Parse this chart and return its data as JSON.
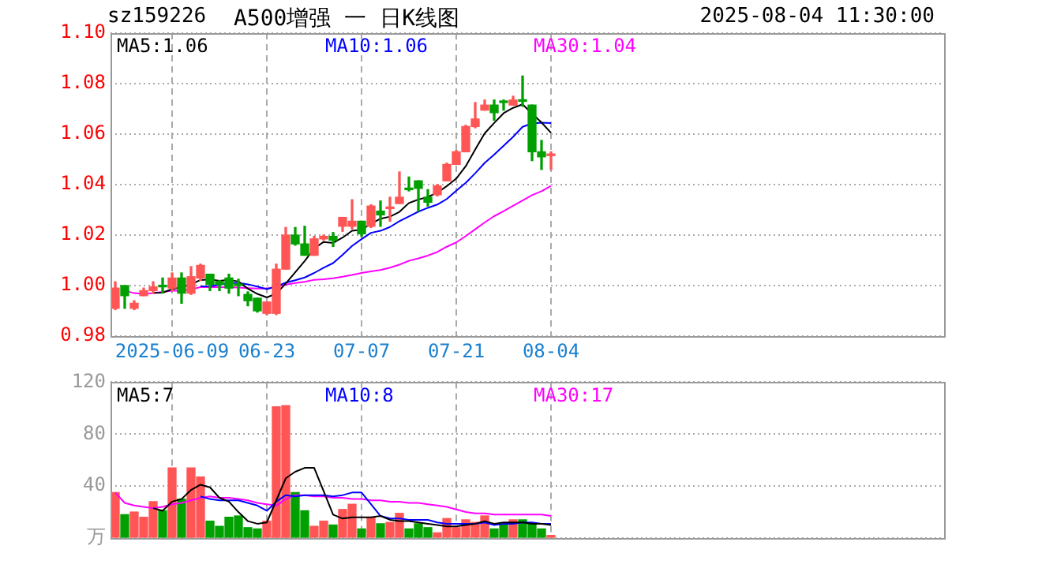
{
  "chart_data": [
    {
      "type": "candlestick",
      "title": "A500增强 一 日K线图",
      "annotations": [
        "sz159226",
        "2025-08-04 11:30:00"
      ],
      "categories": [
        null,
        null,
        null,
        null,
        null,
        null,
        "2025-06-09",
        null,
        null,
        null,
        null,
        null,
        null,
        null,
        null,
        null,
        "06-23",
        null,
        null,
        null,
        null,
        null,
        null,
        null,
        null,
        null,
        "07-07",
        null,
        null,
        null,
        null,
        null,
        null,
        null,
        null,
        null,
        "07-21",
        null,
        null,
        null,
        null,
        null,
        null,
        null,
        null,
        null,
        "08-04"
      ],
      "ohlc": [
        [
          0.991,
          1.0015,
          0.9905,
          0.999
        ],
        [
          1.0,
          1.0,
          0.991,
          0.996
        ],
        [
          0.991,
          0.994,
          0.9905,
          0.993
        ],
        [
          0.996,
          0.999,
          0.996,
          0.998
        ],
        [
          0.998,
          1.0015,
          0.997,
          0.9995
        ],
        [
          1.0,
          1.003,
          0.997,
          0.9995
        ],
        [
          0.999,
          1.005,
          0.998,
          1.003
        ],
        [
          1.003,
          1.005,
          0.993,
          0.997
        ],
        [
          0.997,
          1.0075,
          0.9965,
          1.0035
        ],
        [
          1.003,
          1.0085,
          1.002,
          1.008
        ],
        [
          1.0045,
          1.0045,
          0.998,
          1.0005
        ],
        [
          1.0015,
          1.002,
          0.998,
          1.0005
        ],
        [
          1.003,
          1.0045,
          0.997,
          0.999
        ],
        [
          1.0005,
          1.0025,
          0.996,
          1.0
        ],
        [
          0.9965,
          0.9975,
          0.992,
          0.994
        ],
        [
          0.995,
          0.995,
          0.9895,
          0.99
        ],
        [
          0.989,
          0.9935,
          0.9885,
          0.9935
        ],
        [
          0.989,
          1.0085,
          0.9885,
          1.0065
        ],
        [
          1.0065,
          1.023,
          1.0065,
          1.02
        ],
        [
          1.02,
          1.023,
          1.016,
          1.0165
        ],
        [
          1.0165,
          1.0235,
          1.012,
          1.012
        ],
        [
          1.012,
          1.0195,
          1.012,
          1.0185
        ],
        [
          1.0185,
          1.02,
          1.018,
          1.0195
        ],
        [
          1.0195,
          1.021,
          1.0155,
          1.018
        ],
        [
          1.0235,
          1.027,
          1.0215,
          1.027
        ],
        [
          1.0235,
          1.034,
          1.0225,
          1.0255
        ],
        [
          1.0255,
          1.0255,
          1.0195,
          1.0205
        ],
        [
          1.0235,
          1.032,
          1.023,
          1.0315
        ],
        [
          1.0295,
          1.0335,
          1.0235,
          1.028
        ],
        [
          1.0305,
          1.035,
          1.0255,
          1.031
        ],
        [
          1.0325,
          1.045,
          1.0325,
          1.035
        ],
        [
          1.0385,
          1.043,
          1.0375,
          1.038
        ],
        [
          1.0415,
          1.0415,
          1.0295,
          1.0385
        ],
        [
          1.035,
          1.038,
          1.0315,
          1.033
        ],
        [
          1.036,
          1.04,
          1.0355,
          1.0395
        ],
        [
          1.0415,
          1.0485,
          1.0415,
          1.048
        ],
        [
          1.048,
          1.0535,
          1.048,
          1.053
        ],
        [
          1.053,
          1.0635,
          1.053,
          1.063
        ],
        [
          1.063,
          1.0725,
          1.0625,
          1.066
        ],
        [
          1.0695,
          1.0735,
          1.0695,
          1.0715
        ],
        [
          1.0715,
          1.0735,
          1.0655,
          1.0685
        ],
        [
          1.0727,
          1.0735,
          1.0695,
          1.0725
        ],
        [
          1.0715,
          1.075,
          1.0715,
          1.0735
        ],
        [
          1.0735,
          1.083,
          1.071,
          1.073
        ],
        [
          1.0715,
          1.0715,
          1.0495,
          1.053
        ],
        [
          1.053,
          1.0575,
          1.046,
          1.051
        ],
        [
          1.0515,
          1.053,
          1.046,
          1.052
        ]
      ],
      "colors": [
        "#ff5555",
        "#00a000",
        "#ff5555",
        "#ff5555",
        "#ff5555",
        "#00a000",
        "#ff5555",
        "#00a000",
        "#ff5555",
        "#ff5555",
        "#00a000",
        "#00a000",
        "#00a000",
        "#00a000",
        "#00a000",
        "#00a000",
        "#ff5555",
        "#ff5555",
        "#ff5555",
        "#00a000",
        "#00a000",
        "#ff5555",
        "#ff5555",
        "#00a000",
        "#ff5555",
        "#ff5555",
        "#00a000",
        "#ff5555",
        "#00a000",
        "#ff5555",
        "#ff5555",
        "#00a000",
        "#00a000",
        "#00a000",
        "#ff5555",
        "#ff5555",
        "#ff5555",
        "#ff5555",
        "#ff5555",
        "#ff5555",
        "#00a000",
        "#00a000",
        "#ff5555",
        "#00a000",
        "#00a000",
        "#00a000",
        "#ff5555"
      ],
      "series": [
        {
          "type": "line",
          "name": "MA5:1.06",
          "color": "#000000",
          "values": [
            null,
            null,
            null,
            null,
            0.9971,
            0.9972,
            0.9986,
            0.9994,
            1.0005,
            1.0022,
            1.0024,
            1.0019,
            1.0023,
            1.0016,
            0.9988,
            0.9967,
            0.9953,
            0.9968,
            1.0008,
            1.0053,
            1.0097,
            1.0147,
            1.0173,
            1.0169,
            1.019,
            1.0217,
            1.0221,
            1.0245,
            1.0265,
            1.0273,
            1.0292,
            1.0327,
            1.0341,
            1.0351,
            1.0368,
            1.0394,
            1.0424,
            1.0473,
            1.0539,
            1.0603,
            1.0644,
            1.0683,
            1.0704,
            1.0718,
            1.0681,
            1.0646,
            1.0605
          ]
        },
        {
          "type": "line",
          "name": "MA10:1.06",
          "color": "#0000ff",
          "values": [
            null,
            null,
            null,
            null,
            null,
            null,
            null,
            null,
            null,
            0.9997,
            0.9998,
            1.0003,
            1.0009,
            1.0011,
            1.0005,
            0.9996,
            0.9986,
            0.9996,
            1.0012,
            1.0021,
            1.0032,
            1.005,
            1.0071,
            1.0089,
            1.0122,
            1.0157,
            1.0184,
            1.0209,
            1.0217,
            1.0232,
            1.0255,
            1.0274,
            1.0293,
            1.0308,
            1.0321,
            1.0343,
            1.0376,
            1.0407,
            1.0445,
            1.0486,
            1.0519,
            1.0554,
            1.0589,
            1.0629,
            1.0642,
            1.0645,
            1.0644
          ]
        },
        {
          "type": "line",
          "name": "MA30:1.04",
          "color": "#ff00ff",
          "values": [
            null,
            0.998,
            0.997,
            0.9967,
            0.997,
            0.9975,
            0.998,
            0.998,
            0.9985,
            0.9994,
            0.9994,
            0.9994,
            0.9994,
            0.9992,
            0.999,
            0.9988,
            0.9988,
            0.9995,
            1.0004,
            1.001,
            1.0015,
            1.0023,
            1.0025,
            1.0029,
            1.0035,
            1.0042,
            1.005,
            1.0056,
            1.0062,
            1.0071,
            1.0083,
            1.0098,
            1.0108,
            1.0119,
            1.0133,
            1.0154,
            1.0171,
            1.0196,
            1.0223,
            1.025,
            1.0275,
            1.0295,
            1.0316,
            1.0337,
            1.0358,
            1.0374,
            1.0395
          ]
        }
      ],
      "ylim": [
        0.98,
        1.1
      ],
      "yticks": [
        0.98,
        {
          "value": 1.0,
          "label": "1.00"
        },
        1.02,
        1.04,
        1.06,
        1.08,
        {
          "value": 1.1,
          "label": "1.10"
        }
      ],
      "grid": true,
      "legend": "top",
      "marker": "none"
    },
    {
      "type": "bar",
      "categories": [
        null,
        null,
        null,
        null,
        null,
        null,
        null,
        null,
        null,
        null,
        null,
        null,
        null,
        null,
        null,
        null,
        null,
        null,
        null,
        null,
        null,
        null,
        null,
        null,
        null,
        null,
        null,
        null,
        null,
        null,
        null,
        null,
        null,
        null,
        null,
        null,
        null,
        null,
        null,
        null,
        null,
        null,
        null,
        null,
        null,
        null,
        null
      ],
      "series": [
        {
          "type": "bar",
          "values": [
            35,
            18,
            20,
            16,
            28,
            21,
            54,
            30,
            54,
            47,
            13,
            9,
            16,
            17,
            8,
            7,
            13,
            101,
            102,
            35,
            21,
            9,
            13,
            10,
            22,
            26,
            7,
            16,
            11,
            12,
            19,
            7,
            11,
            8,
            4,
            15,
            8,
            14,
            12,
            17,
            7,
            10,
            14,
            14,
            11,
            7,
            2
          ],
          "colors": [
            "#ff5555",
            "#00a000",
            "#ff5555",
            "#ff5555",
            "#ff5555",
            "#00a000",
            "#ff5555",
            "#00a000",
            "#ff5555",
            "#ff5555",
            "#00a000",
            "#00a000",
            "#00a000",
            "#00a000",
            "#00a000",
            "#00a000",
            "#ff5555",
            "#ff5555",
            "#ff5555",
            "#00a000",
            "#00a000",
            "#ff5555",
            "#ff5555",
            "#00a000",
            "#ff5555",
            "#ff5555",
            "#00a000",
            "#ff5555",
            "#00a000",
            "#ff5555",
            "#ff5555",
            "#00a000",
            "#00a000",
            "#00a000",
            "#ff5555",
            "#ff5555",
            "#ff5555",
            "#ff5555",
            "#ff5555",
            "#ff5555",
            "#00a000",
            "#00a000",
            "#ff5555",
            "#00a000",
            "#00a000",
            "#00a000",
            "#ff5555"
          ]
        },
        {
          "type": "line",
          "name": "MA5:7",
          "color": "#000000",
          "values": [
            null,
            null,
            null,
            null,
            23,
            21,
            28,
            30,
            37,
            41,
            39,
            31,
            28,
            20,
            13,
            11,
            12,
            29,
            46,
            51,
            54,
            54,
            36,
            18,
            15,
            16,
            16,
            16,
            17,
            14,
            13,
            13,
            12,
            11,
            10,
            9,
            9,
            10,
            11,
            13,
            11,
            12,
            12,
            12,
            11,
            11,
            10
          ]
        },
        {
          "type": "line",
          "name": "MA10:8",
          "color": "#0000ff",
          "values": [
            null,
            null,
            null,
            null,
            null,
            null,
            null,
            null,
            null,
            32,
            30,
            29,
            29,
            29,
            27,
            25,
            21,
            28,
            33,
            32,
            33,
            33,
            33,
            32,
            33,
            35,
            35,
            26,
            17,
            15,
            15,
            14,
            14,
            14,
            12,
            11,
            11,
            11,
            11,
            12,
            10,
            11,
            11,
            12,
            12,
            11,
            11
          ]
        },
        {
          "type": "line",
          "name": "MA30:17",
          "color": "#ff00ff",
          "values": [
            35,
            27,
            25,
            24,
            23,
            24,
            26,
            27,
            29,
            31,
            32,
            31,
            31,
            30,
            29,
            27,
            26,
            25,
            30,
            33,
            33,
            32,
            32,
            31,
            31,
            30,
            30,
            29,
            29,
            28,
            28,
            27,
            27,
            26,
            25,
            24,
            22,
            20,
            19,
            19,
            18,
            18,
            18,
            18,
            18,
            18,
            17
          ]
        }
      ],
      "ylim": [
        0,
        120
      ],
      "yticks": [
        {
          "value": 0,
          "label": "万"
        },
        40,
        80,
        120
      ],
      "grid": true,
      "legend": "top",
      "marker": "none",
      "tick_labels": "y"
    }
  ]
}
